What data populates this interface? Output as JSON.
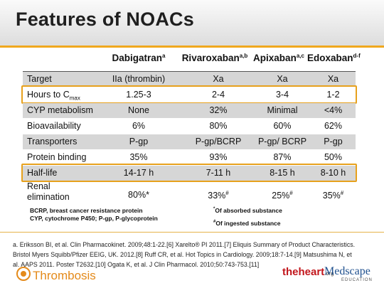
{
  "slide": {
    "title": "Features of NOACs"
  },
  "headers": [
    {
      "name": "Dabigatran",
      "sup": "a"
    },
    {
      "name": "Rivaroxaban",
      "sup": "a,b"
    },
    {
      "name": "Apixaban",
      "sup": "a,c"
    },
    {
      "name": "Edoxaban",
      "sup": "d-f"
    }
  ],
  "rows": [
    {
      "label": "Target",
      "values": [
        "IIa (thrombin)",
        "Xa",
        "Xa",
        "Xa"
      ]
    },
    {
      "label": "Hours to C",
      "label_sub": "max",
      "values": [
        "1.25-3",
        "2-4",
        "3-4",
        "1-2"
      ]
    },
    {
      "label": "CYP metabolism",
      "values": [
        "None",
        "32%",
        "Minimal",
        "<4%"
      ]
    },
    {
      "label": "Bioavailability",
      "values": [
        "6%",
        "80%",
        "60%",
        "62%"
      ]
    },
    {
      "label": "Transporters",
      "values": [
        "P-gp",
        "P-gp/BCRP",
        "P-gp/ BCRP",
        "P-gp"
      ]
    },
    {
      "label": "Protein binding",
      "values": [
        "35%",
        "93%",
        "87%",
        "50%"
      ]
    },
    {
      "label": "Half-life",
      "values": [
        "14-17 h",
        "7-11 h",
        "8-15 h",
        "8-10 h"
      ]
    }
  ],
  "renal": {
    "label_line1": "Renal",
    "label_line2": "elimination",
    "values": [
      "80%*",
      "33%",
      "25%",
      "35%"
    ],
    "sup": "#"
  },
  "abbrev": {
    "line1": "BCRP, breast cancer resistance protein",
    "line2": "CYP, cytochrome P450; P-gp, P-glycoprotein"
  },
  "notes": {
    "star_mark": "*",
    "star_text": "Of absorbed substance",
    "hash_mark": "#",
    "hash_text": "Of ingested substance"
  },
  "references": {
    "line1": "a. Eriksson BI, et al. Clin Pharmacokinet. 2009;48:1-22.[6]  Xarelto® PI 2011.[7] Eliquis Summary of Product Characteristics.",
    "line2": "Bristol Myers Squibb/Pfizer EEIG, UK. 2012.[8]  Ruff CR, et al. Hot Topics in Cardiology. 2009;18:7-14.[9] Matsushima N, et",
    "line3": "al. AAPS 2011. Poster T2632.[10] Ogata K, et al. J Clin Pharmacol. 2010;50:743-753.[11]"
  },
  "branding": {
    "thrombosis": "Thrombosis",
    "theheart": "theheart",
    "theheart_suffix": ".org",
    "medscape": "Medscape",
    "medscape_sub": "EDUCATION"
  },
  "colors": {
    "accent": "#e7a11d",
    "shade": "#d6d6d6"
  }
}
